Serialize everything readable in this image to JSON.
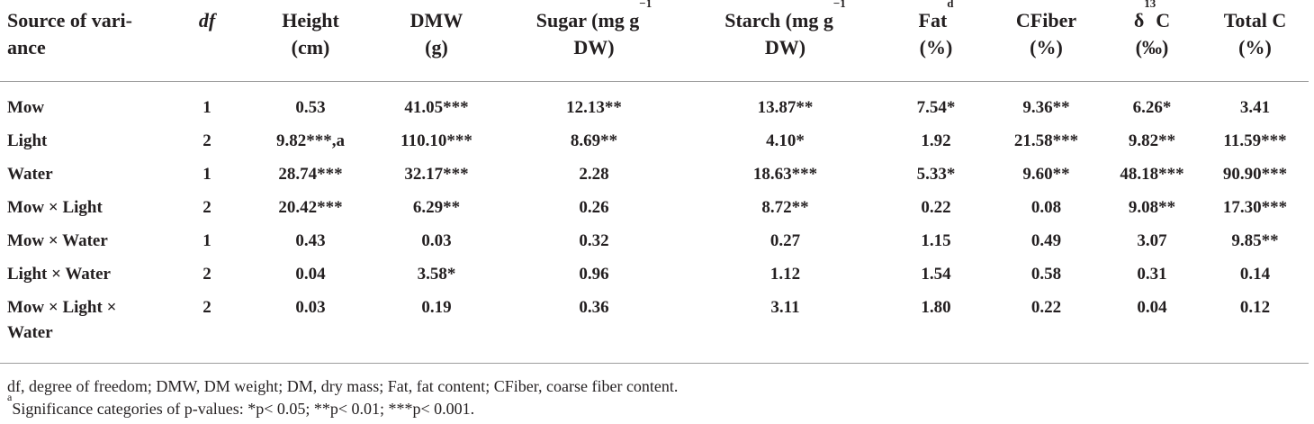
{
  "table": {
    "headers": [
      {
        "line1": "Source of vari-",
        "line2": "ance"
      },
      {
        "line1": "df",
        "line2": ""
      },
      {
        "line1": "Height",
        "line2": "(cm)"
      },
      {
        "line1": "DMW",
        "line2": "(g)"
      },
      {
        "line1": "Sugar (mg g",
        "sup": "−1",
        "line2": "DW)"
      },
      {
        "line1": "Starch (mg g",
        "sup": "−1",
        "line2": "DW)"
      },
      {
        "line1": "Fat",
        "sup": "d",
        "line2": "(%)"
      },
      {
        "line1": "CFiber",
        "line2": "(%)"
      },
      {
        "line1": "δ",
        "sup": "13",
        "line1_tail": "C",
        "line2": "(‰)"
      },
      {
        "line1": "Total C",
        "line2": "(%)"
      }
    ],
    "rows": [
      {
        "source": "Mow",
        "df": "1",
        "height": "0.53",
        "dmw": "41.05***",
        "sugar": "12.13**",
        "starch": "13.87**",
        "fat": "7.54*",
        "cfiber": "9.36**",
        "d13c": "6.26*",
        "totalc": "3.41"
      },
      {
        "source": "Light",
        "df": "2",
        "height": "9.82***,a",
        "dmw": "110.10***",
        "sugar": "8.69**",
        "starch": "4.10*",
        "fat": "1.92",
        "cfiber": "21.58***",
        "d13c": "9.82**",
        "totalc": "11.59***"
      },
      {
        "source": "Water",
        "df": "1",
        "height": "28.74***",
        "dmw": "32.17***",
        "sugar": "2.28",
        "starch": "18.63***",
        "fat": "5.33*",
        "cfiber": "9.60**",
        "d13c": "48.18***",
        "totalc": "90.90***"
      },
      {
        "source": "Mow × Light",
        "df": "2",
        "height": "20.42***",
        "dmw": "6.29**",
        "sugar": "0.26",
        "starch": "8.72**",
        "fat": "0.22",
        "cfiber": "0.08",
        "d13c": "9.08**",
        "totalc": "17.30***"
      },
      {
        "source": "Mow × Water",
        "df": "1",
        "height": "0.43",
        "dmw": "0.03",
        "sugar": "0.32",
        "starch": "0.27",
        "fat": "1.15",
        "cfiber": "0.49",
        "d13c": "3.07",
        "totalc": "9.85**"
      },
      {
        "source": "Light × Water",
        "df": "2",
        "height": "0.04",
        "dmw": "3.58*",
        "sugar": "0.96",
        "starch": "1.12",
        "fat": "1.54",
        "cfiber": "0.58",
        "d13c": "0.31",
        "totalc": "0.14"
      },
      {
        "source": "Mow × Light ×",
        "source2": "Water",
        "df": "2",
        "height": "0.03",
        "dmw": "0.19",
        "sugar": "0.36",
        "starch": "3.11",
        "fat": "1.80",
        "cfiber": "0.22",
        "d13c": "0.04",
        "totalc": "0.12"
      }
    ]
  },
  "footnotes": {
    "abbrev": "df, degree of freedom; DMW, DM weight; DM, dry mass; Fat, fat content; CFiber, coarse fiber content.",
    "sig_marker": "a",
    "sig_text": "Significance categories of p-values: *p< 0.05; **p< 0.01; ***p< 0.001."
  }
}
